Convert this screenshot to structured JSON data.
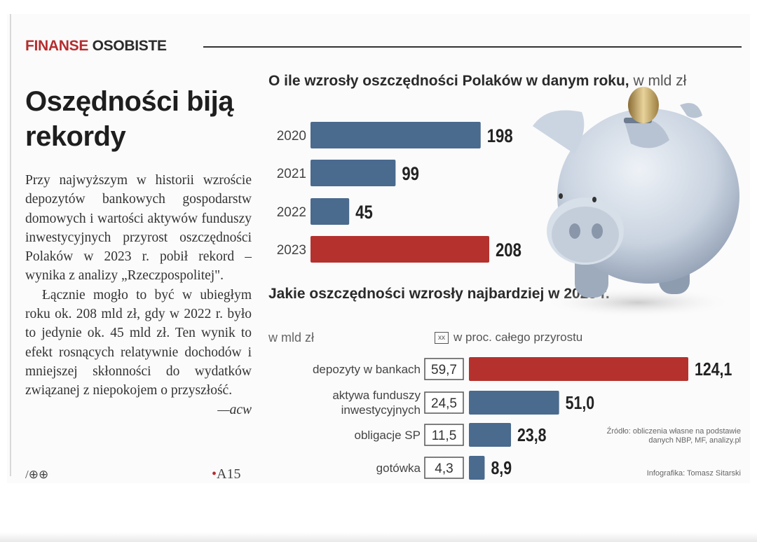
{
  "section": {
    "word1": "FINANSE",
    "word2": "OSOBISTE"
  },
  "article": {
    "headline": "Oszędności biją rekordy",
    "paragraph1": "Przy najwyższym w historii wzroście depozytów bankowych gospodarstw domowych i wartości aktywów funduszy inwestycyjnych przyrost oszczędności Polaków w 2023 r. pobił rekord – wynika z analizy „Rzeczpospolitej\".",
    "paragraph2": "Łącznie mogło to być w ubiegłym roku ok. 208 mld zł, gdy w 2022 r. było to jedynie ok. 45 mld zł. Ten wynik to efekt rosnących relatywnie dochodów i mniejszej skłonności do wydatków związanej z niepokojem o przyszłość.",
    "author": "—acw",
    "footer_left": "/⊕⊕",
    "footer_symbol": "•",
    "footer_page": "A15"
  },
  "colors": {
    "blue": "#4a6a8e",
    "red": "#b5312d",
    "accent": "#b52d2f"
  },
  "chart_data": [
    {
      "type": "bar",
      "orientation": "horizontal",
      "title": "O ile wzrosły oszczędności Polaków w danym roku,",
      "unit": "w mld zł",
      "categories": [
        "2020",
        "2021",
        "2022",
        "2023"
      ],
      "values": [
        198,
        99,
        45,
        208
      ],
      "value_labels": [
        "198",
        "99",
        "45",
        "208"
      ],
      "highlight": [
        "2023"
      ]
    },
    {
      "type": "bar",
      "orientation": "horizontal",
      "title": "Jakie oszczędności wzrosły najbardziej w 2023 r.",
      "unit": "w mld zł",
      "legend": "w proc. całego przyrostu",
      "categories": [
        "depozyty w bankach",
        "aktywa funduszy inwestycyjnych",
        "obligacje SP",
        "gotówka"
      ],
      "values": [
        124.1,
        51.0,
        23.8,
        8.9
      ],
      "value_labels": [
        "124,1",
        "51,0",
        "23,8",
        "8,9"
      ],
      "percent_labels": [
        "59,7",
        "24,5",
        "11,5",
        "4,3"
      ],
      "highlight": [
        "depozyty w bankach"
      ]
    }
  ],
  "source": "Źródło: obliczenia własne na podstawie danych NBP, MF, analizy.pl",
  "credit": "Infografika: Tomasz Sitarski"
}
